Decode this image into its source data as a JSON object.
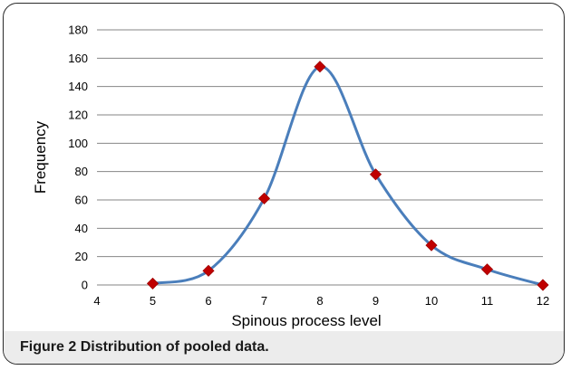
{
  "figure": {
    "label": "Figure 2",
    "caption": "Distribution of pooled data."
  },
  "chart_data": {
    "type": "scatter",
    "title": "",
    "xlabel": "Spinous process level",
    "ylabel": "Frequency",
    "xlim": [
      4,
      12
    ],
    "ylim": [
      0,
      180
    ],
    "xticks": [
      4,
      5,
      6,
      7,
      8,
      9,
      10,
      11,
      12
    ],
    "yticks": [
      0,
      20,
      40,
      60,
      80,
      100,
      120,
      140,
      160,
      180
    ],
    "grid": "horizontal",
    "legend": "none",
    "line_style": "smoothed",
    "colors": {
      "line": "#4a7ebb",
      "marker": "#c00000",
      "grid": "#868686"
    },
    "series": [
      {
        "x": [
          5,
          6,
          7,
          8,
          9,
          10,
          11,
          12
        ],
        "y": [
          1,
          10,
          61,
          154,
          78,
          28,
          11,
          0
        ]
      }
    ]
  }
}
